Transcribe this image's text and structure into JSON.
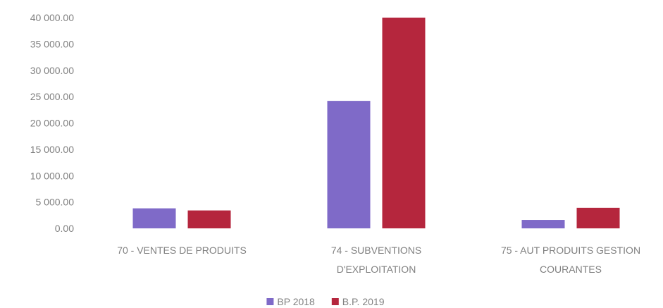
{
  "chart_data": {
    "type": "bar",
    "categories": [
      [
        "70 - VENTES DE PRODUITS"
      ],
      [
        "74 - SUBVENTIONS",
        "D'EXPLOITATION"
      ],
      [
        "75 - AUT PRODUITS GESTION",
        "COURANTES"
      ]
    ],
    "series": [
      {
        "name": "BP 2018",
        "color": "#7f6ac8",
        "values": [
          3800,
          24200,
          1600
        ]
      },
      {
        "name": "B.P. 2019",
        "color": "#b5263d",
        "values": [
          3400,
          40000,
          3900
        ]
      }
    ],
    "ylim": [
      0,
      40000
    ],
    "yticks": [
      {
        "value": 0,
        "label": "0.00"
      },
      {
        "value": 5000,
        "label": "5 000.00"
      },
      {
        "value": 10000,
        "label": "10 000.00"
      },
      {
        "value": 15000,
        "label": "15 000.00"
      },
      {
        "value": 20000,
        "label": "20 000.00"
      },
      {
        "value": 25000,
        "label": "25 000.00"
      },
      {
        "value": 30000,
        "label": "30 000.00"
      },
      {
        "value": 35000,
        "label": "35 000.00"
      },
      {
        "value": 40000,
        "label": "40 000.00"
      }
    ],
    "grid": false,
    "legend_position": "bottom-center"
  }
}
